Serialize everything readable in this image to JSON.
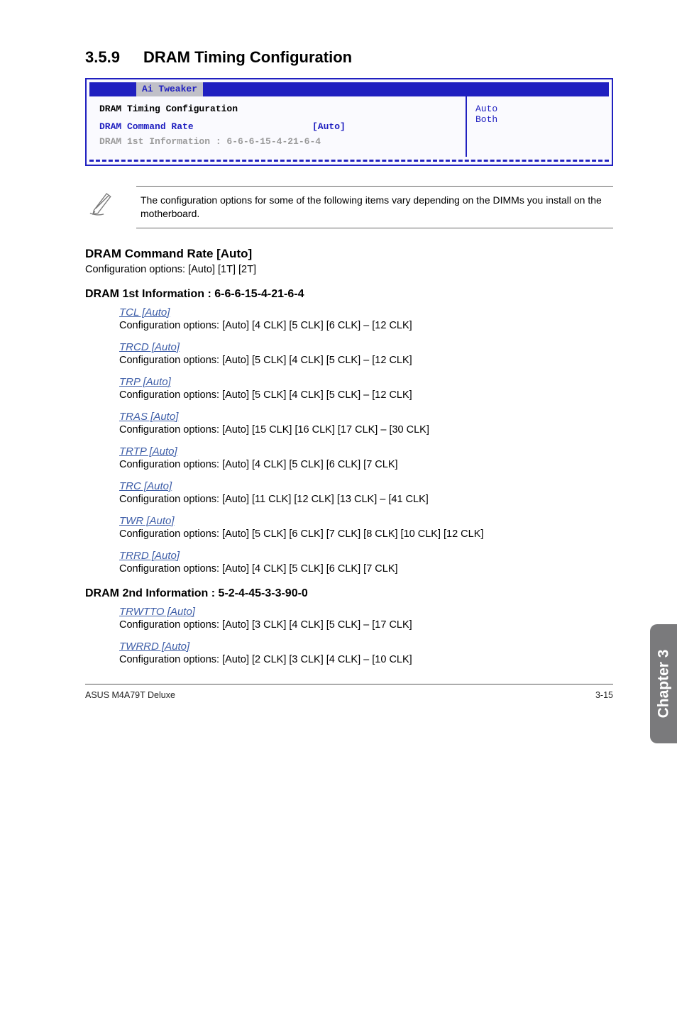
{
  "section": {
    "number": "3.5.9",
    "title": "DRAM Timing Configuration"
  },
  "bios": {
    "tab": "Ai Tweaker",
    "heading": "DRAM Timing Configuration",
    "row1_label": "DRAM Command Rate",
    "row1_value": "[Auto]",
    "row2": "DRAM 1st Information : 6-6-6-15-4-21-6-4",
    "right_line1": "Auto",
    "right_line2": "Both"
  },
  "note": "The configuration options for some of the following items vary depending on the DIMMs you install on the motherboard.",
  "h_cmd_rate": "DRAM Command Rate [Auto]",
  "cmd_rate_opts": "Configuration options: [Auto] [1T] [2T]",
  "h_first": "DRAM 1st Information : 6-6-6-15-4-21-6-4",
  "items1": [
    {
      "t": "TCL [Auto]",
      "o": "Configuration options: [Auto] [4 CLK] [5 CLK] [6 CLK] – [12 CLK]"
    },
    {
      "t": "TRCD [Auto]",
      "o": "Configuration options: [Auto] [5 CLK] [4 CLK] [5 CLK] – [12 CLK]"
    },
    {
      "t": "TRP [Auto]",
      "o": "Configuration options: [Auto] [5 CLK] [4 CLK] [5 CLK] – [12 CLK]"
    },
    {
      "t": "TRAS [Auto]",
      "o": "Configuration options: [Auto] [15 CLK] [16 CLK] [17 CLK] – [30 CLK]"
    },
    {
      "t": "TRTP [Auto]",
      "o": "Configuration options: [Auto] [4 CLK] [5 CLK] [6 CLK] [7 CLK]"
    },
    {
      "t": "TRC [Auto]",
      "o": "Configuration options: [Auto] [11 CLK] [12 CLK] [13 CLK] – [41 CLK]"
    },
    {
      "t": "TWR [Auto]",
      "o": "Configuration options: [Auto] [5 CLK] [6 CLK] [7 CLK] [8 CLK] [10 CLK] [12 CLK]"
    },
    {
      "t": "TRRD [Auto]",
      "o": "Configuration options: [Auto] [4 CLK] [5 CLK] [6 CLK] [7 CLK]"
    }
  ],
  "h_second": "DRAM 2nd Information : 5-2-4-45-3-3-90-0",
  "items2": [
    {
      "t": "TRWTTO [Auto]",
      "o": "Configuration options: [Auto] [3 CLK] [4 CLK] [5 CLK] – [17 CLK]"
    },
    {
      "t": "TWRRD [Auto]",
      "o": "Configuration options: [Auto] [2 CLK] [3 CLK] [4 CLK] – [10 CLK]"
    }
  ],
  "side_tab": "Chapter 3",
  "footer_left": "ASUS M4A79T Deluxe",
  "footer_right": "3-15"
}
